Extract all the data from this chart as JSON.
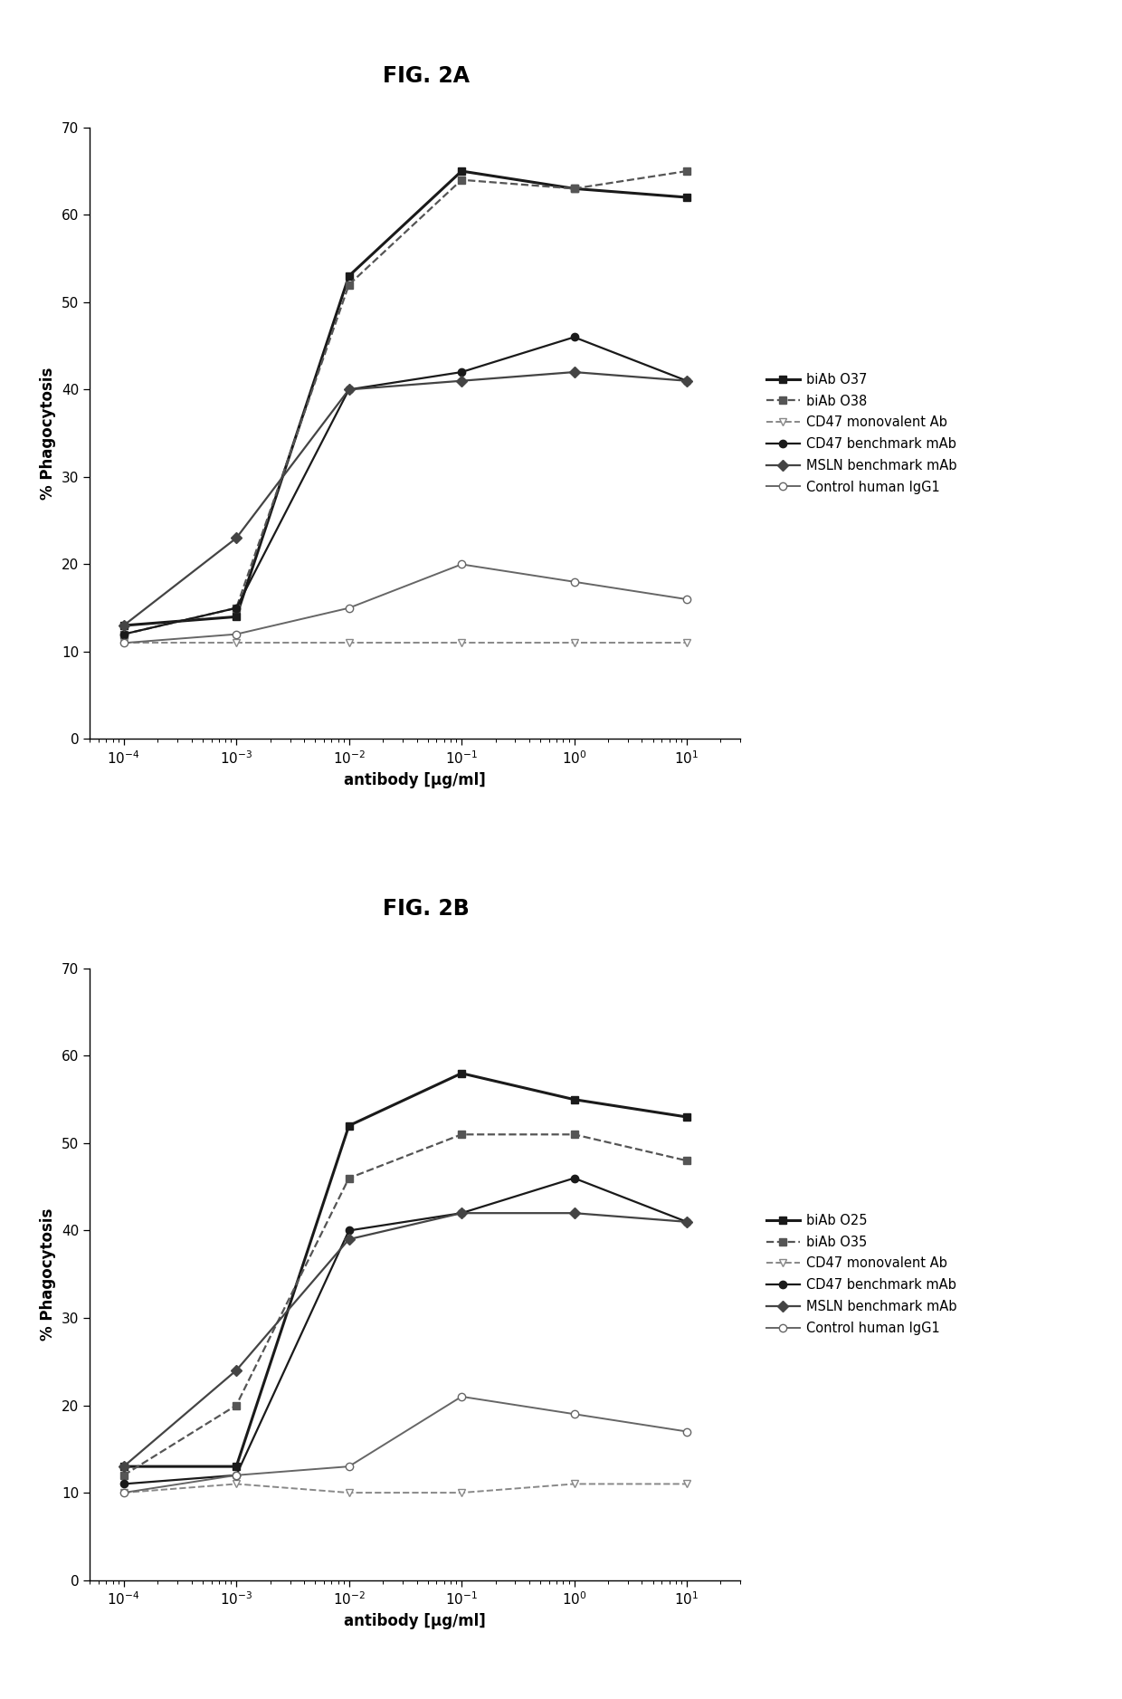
{
  "fig2a": {
    "title": "FIG. 2A",
    "x": [
      0.0001,
      0.001,
      0.01,
      0.1,
      1.0,
      10.0
    ],
    "series": [
      {
        "label": "biAb O37",
        "y": [
          13,
          14,
          53,
          65,
          63,
          62
        ],
        "color": "#1a1a1a",
        "linestyle": "-",
        "marker": "s",
        "linewidth": 2.2,
        "markersize": 6,
        "markerfilled": true
      },
      {
        "label": "biAb O38",
        "y": [
          12,
          15,
          52,
          64,
          63,
          65
        ],
        "color": "#555555",
        "linestyle": "--",
        "marker": "s",
        "linewidth": 1.6,
        "markersize": 6,
        "markerfilled": true
      },
      {
        "label": "CD47 monovalent Ab",
        "y": [
          11,
          11,
          11,
          11,
          11,
          11
        ],
        "color": "#888888",
        "linestyle": "--",
        "marker": "v",
        "linewidth": 1.4,
        "markersize": 6,
        "markerfilled": false
      },
      {
        "label": "CD47 benchmark mAb",
        "y": [
          12,
          15,
          40,
          42,
          46,
          41
        ],
        "color": "#1a1a1a",
        "linestyle": "-",
        "marker": "o",
        "linewidth": 1.6,
        "markersize": 6,
        "markerfilled": true
      },
      {
        "label": "MSLN benchmark mAb",
        "y": [
          13,
          23,
          40,
          41,
          42,
          41
        ],
        "color": "#444444",
        "linestyle": "-",
        "marker": "D",
        "linewidth": 1.6,
        "markersize": 6,
        "markerfilled": true
      },
      {
        "label": "Control human IgG1",
        "y": [
          11,
          12,
          15,
          20,
          18,
          16
        ],
        "color": "#666666",
        "linestyle": "-",
        "marker": "o",
        "linewidth": 1.4,
        "markersize": 6,
        "markerfilled": false
      }
    ],
    "ylabel": "% Phagocytosis",
    "xlabel": "antibody [µg/ml]",
    "ylim": [
      0,
      70
    ],
    "yticks": [
      0,
      10,
      20,
      30,
      40,
      50,
      60,
      70
    ],
    "xlim": [
      5e-05,
      30
    ]
  },
  "fig2b": {
    "title": "FIG. 2B",
    "x": [
      0.0001,
      0.001,
      0.01,
      0.1,
      1.0,
      10.0
    ],
    "series": [
      {
        "label": "biAb O25",
        "y": [
          13,
          13,
          52,
          58,
          55,
          53
        ],
        "color": "#1a1a1a",
        "linestyle": "-",
        "marker": "s",
        "linewidth": 2.2,
        "markersize": 6,
        "markerfilled": true
      },
      {
        "label": "biAb O35",
        "y": [
          12,
          20,
          46,
          51,
          51,
          48
        ],
        "color": "#555555",
        "linestyle": "--",
        "marker": "s",
        "linewidth": 1.6,
        "markersize": 6,
        "markerfilled": true
      },
      {
        "label": "CD47 monovalent Ab",
        "y": [
          10,
          11,
          10,
          10,
          11,
          11
        ],
        "color": "#888888",
        "linestyle": "--",
        "marker": "v",
        "linewidth": 1.4,
        "markersize": 6,
        "markerfilled": false
      },
      {
        "label": "CD47 benchmark mAb",
        "y": [
          11,
          12,
          40,
          42,
          46,
          41
        ],
        "color": "#1a1a1a",
        "linestyle": "-",
        "marker": "o",
        "linewidth": 1.6,
        "markersize": 6,
        "markerfilled": true
      },
      {
        "label": "MSLN benchmark mAb",
        "y": [
          13,
          24,
          39,
          42,
          42,
          41
        ],
        "color": "#444444",
        "linestyle": "-",
        "marker": "D",
        "linewidth": 1.6,
        "markersize": 6,
        "markerfilled": true
      },
      {
        "label": "Control human IgG1",
        "y": [
          10,
          12,
          13,
          21,
          19,
          17
        ],
        "color": "#666666",
        "linestyle": "-",
        "marker": "o",
        "linewidth": 1.4,
        "markersize": 6,
        "markerfilled": false
      }
    ],
    "ylabel": "% Phagocytosis",
    "xlabel": "antibody [µg/ml]",
    "ylim": [
      0,
      70
    ],
    "yticks": [
      0,
      10,
      20,
      30,
      40,
      50,
      60,
      70
    ],
    "xlim": [
      5e-05,
      30
    ]
  },
  "background_color": "#ffffff",
  "figure_title_fontsize": 17,
  "axis_label_fontsize": 12,
  "tick_fontsize": 11,
  "legend_fontsize": 10.5
}
